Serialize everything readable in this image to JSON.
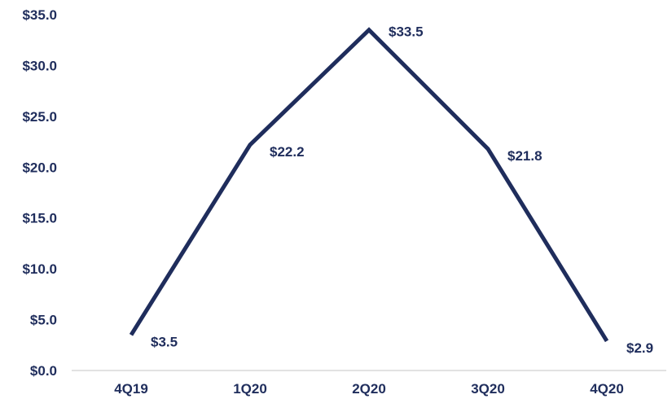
{
  "chart_data": {
    "type": "line",
    "title": "",
    "xlabel": "",
    "ylabel": "",
    "categories": [
      "4Q19",
      "1Q20",
      "2Q20",
      "3Q20",
      "4Q20"
    ],
    "series": [
      {
        "values": [
          3.5,
          22.2,
          33.5,
          21.8,
          2.9
        ],
        "labels": [
          "$3.5",
          "$22.2",
          "$33.5",
          "$21.8",
          "$2.9"
        ],
        "color": "#1f2d5c"
      }
    ],
    "ylim": [
      0,
      35
    ],
    "yticks": [
      0,
      5,
      10,
      15,
      20,
      25,
      30,
      35
    ],
    "ytick_labels": [
      "$0.0",
      "$5.0",
      "$10.0",
      "$15.0",
      "$20.0",
      "$25.0",
      "$30.0",
      "$35.0"
    ],
    "grid": false,
    "legend": "none",
    "text_color": "#1f2d5c",
    "axis_color": "#d9d9d9"
  }
}
